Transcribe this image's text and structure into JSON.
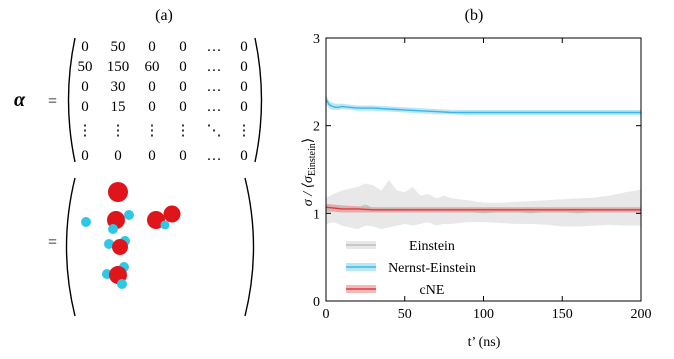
{
  "panel_a": {
    "label": "(a)",
    "alpha_symbol": "α",
    "equals": "=",
    "matrix": [
      [
        "0",
        "50",
        "0",
        "0",
        "…",
        "0"
      ],
      [
        "50",
        "150",
        "60",
        "0",
        "…",
        "0"
      ],
      [
        "0",
        "30",
        "0",
        "0",
        "…",
        "0"
      ],
      [
        "0",
        "15",
        "0",
        "0",
        "…",
        "0"
      ],
      [
        "⋮",
        "⋮",
        "⋮",
        "⋮",
        "⋱",
        "⋮"
      ],
      [
        "0",
        "0",
        "0",
        "0",
        "…",
        "0"
      ]
    ],
    "atom_colors": {
      "oxygen": "#e0141b",
      "hydrogen": "#2ec8e6"
    }
  },
  "chart_data": {
    "type": "line",
    "panel_label": "(b)",
    "xlabel": "t’ (ns)",
    "ylabel_main": "σ / ⟨σ",
    "ylabel_sub": "Einstein",
    "ylabel_close": "⟩",
    "xlim": [
      0,
      200
    ],
    "ylim": [
      0,
      3
    ],
    "xticks": [
      0,
      50,
      100,
      150,
      200
    ],
    "yticks": [
      0,
      1,
      2,
      3
    ],
    "grid": false,
    "legend_position": "bottom-left",
    "series": [
      {
        "name": "Einstein",
        "color": "#bdbdbd",
        "x": [
          0,
          5,
          10,
          15,
          20,
          25,
          30,
          35,
          40,
          45,
          50,
          55,
          60,
          65,
          70,
          75,
          80,
          90,
          100,
          110,
          120,
          130,
          140,
          150,
          160,
          170,
          180,
          190,
          200
        ],
        "y": [
          1.05,
          1.06,
          1.08,
          1.04,
          1.06,
          1.09,
          1.05,
          1.03,
          1.06,
          1.04,
          1.02,
          1.05,
          1.03,
          1.04,
          1.02,
          1.03,
          1.02,
          1.02,
          1.01,
          1.02,
          1.02,
          1.01,
          1.02,
          1.02,
          1.01,
          1.02,
          1.02,
          1.03,
          1.04
        ],
        "lower": [
          0.88,
          0.9,
          0.86,
          0.84,
          0.82,
          0.86,
          0.85,
          0.82,
          0.84,
          0.86,
          0.88,
          0.86,
          0.88,
          0.9,
          0.86,
          0.88,
          0.88,
          0.9,
          0.9,
          0.89,
          0.88,
          0.88,
          0.87,
          0.85,
          0.85,
          0.86,
          0.87,
          0.86,
          0.86
        ],
        "upper": [
          1.18,
          1.22,
          1.26,
          1.28,
          1.3,
          1.34,
          1.32,
          1.26,
          1.38,
          1.26,
          1.24,
          1.3,
          1.2,
          1.22,
          1.17,
          1.2,
          1.17,
          1.15,
          1.12,
          1.12,
          1.13,
          1.14,
          1.15,
          1.16,
          1.17,
          1.18,
          1.2,
          1.24,
          1.27
        ]
      },
      {
        "name": "Nernst-Einstein",
        "color": "#39b8e8",
        "x": [
          0,
          2,
          4,
          6,
          8,
          10,
          15,
          20,
          25,
          30,
          40,
          50,
          60,
          70,
          80,
          90,
          100,
          120,
          140,
          160,
          180,
          200
        ],
        "y": [
          2.3,
          2.24,
          2.22,
          2.21,
          2.21,
          2.22,
          2.21,
          2.2,
          2.2,
          2.2,
          2.19,
          2.18,
          2.17,
          2.16,
          2.15,
          2.15,
          2.15,
          2.15,
          2.15,
          2.15,
          2.15,
          2.15
        ],
        "lower": [
          2.25,
          2.2,
          2.18,
          2.18,
          2.18,
          2.19,
          2.18,
          2.17,
          2.17,
          2.17,
          2.16,
          2.15,
          2.14,
          2.13,
          2.13,
          2.12,
          2.12,
          2.12,
          2.12,
          2.12,
          2.12,
          2.12
        ],
        "upper": [
          2.35,
          2.28,
          2.26,
          2.25,
          2.25,
          2.25,
          2.24,
          2.23,
          2.23,
          2.23,
          2.22,
          2.21,
          2.2,
          2.19,
          2.18,
          2.18,
          2.18,
          2.18,
          2.18,
          2.18,
          2.18,
          2.18
        ]
      },
      {
        "name": "cNE",
        "color": "#e03a3a",
        "x": [
          0,
          5,
          10,
          20,
          30,
          40,
          50,
          60,
          70,
          80,
          90,
          100,
          120,
          140,
          160,
          180,
          200
        ],
        "y": [
          1.07,
          1.06,
          1.05,
          1.05,
          1.04,
          1.04,
          1.04,
          1.04,
          1.04,
          1.04,
          1.04,
          1.04,
          1.04,
          1.04,
          1.04,
          1.04,
          1.04
        ],
        "lower": [
          1.02,
          1.02,
          1.01,
          1.01,
          1.01,
          1.01,
          1.01,
          1.01,
          1.01,
          1.01,
          1.01,
          1.01,
          1.01,
          1.01,
          1.01,
          1.01,
          1.01
        ],
        "upper": [
          1.11,
          1.1,
          1.09,
          1.08,
          1.07,
          1.07,
          1.07,
          1.07,
          1.07,
          1.07,
          1.07,
          1.07,
          1.07,
          1.07,
          1.07,
          1.07,
          1.07
        ]
      }
    ]
  }
}
